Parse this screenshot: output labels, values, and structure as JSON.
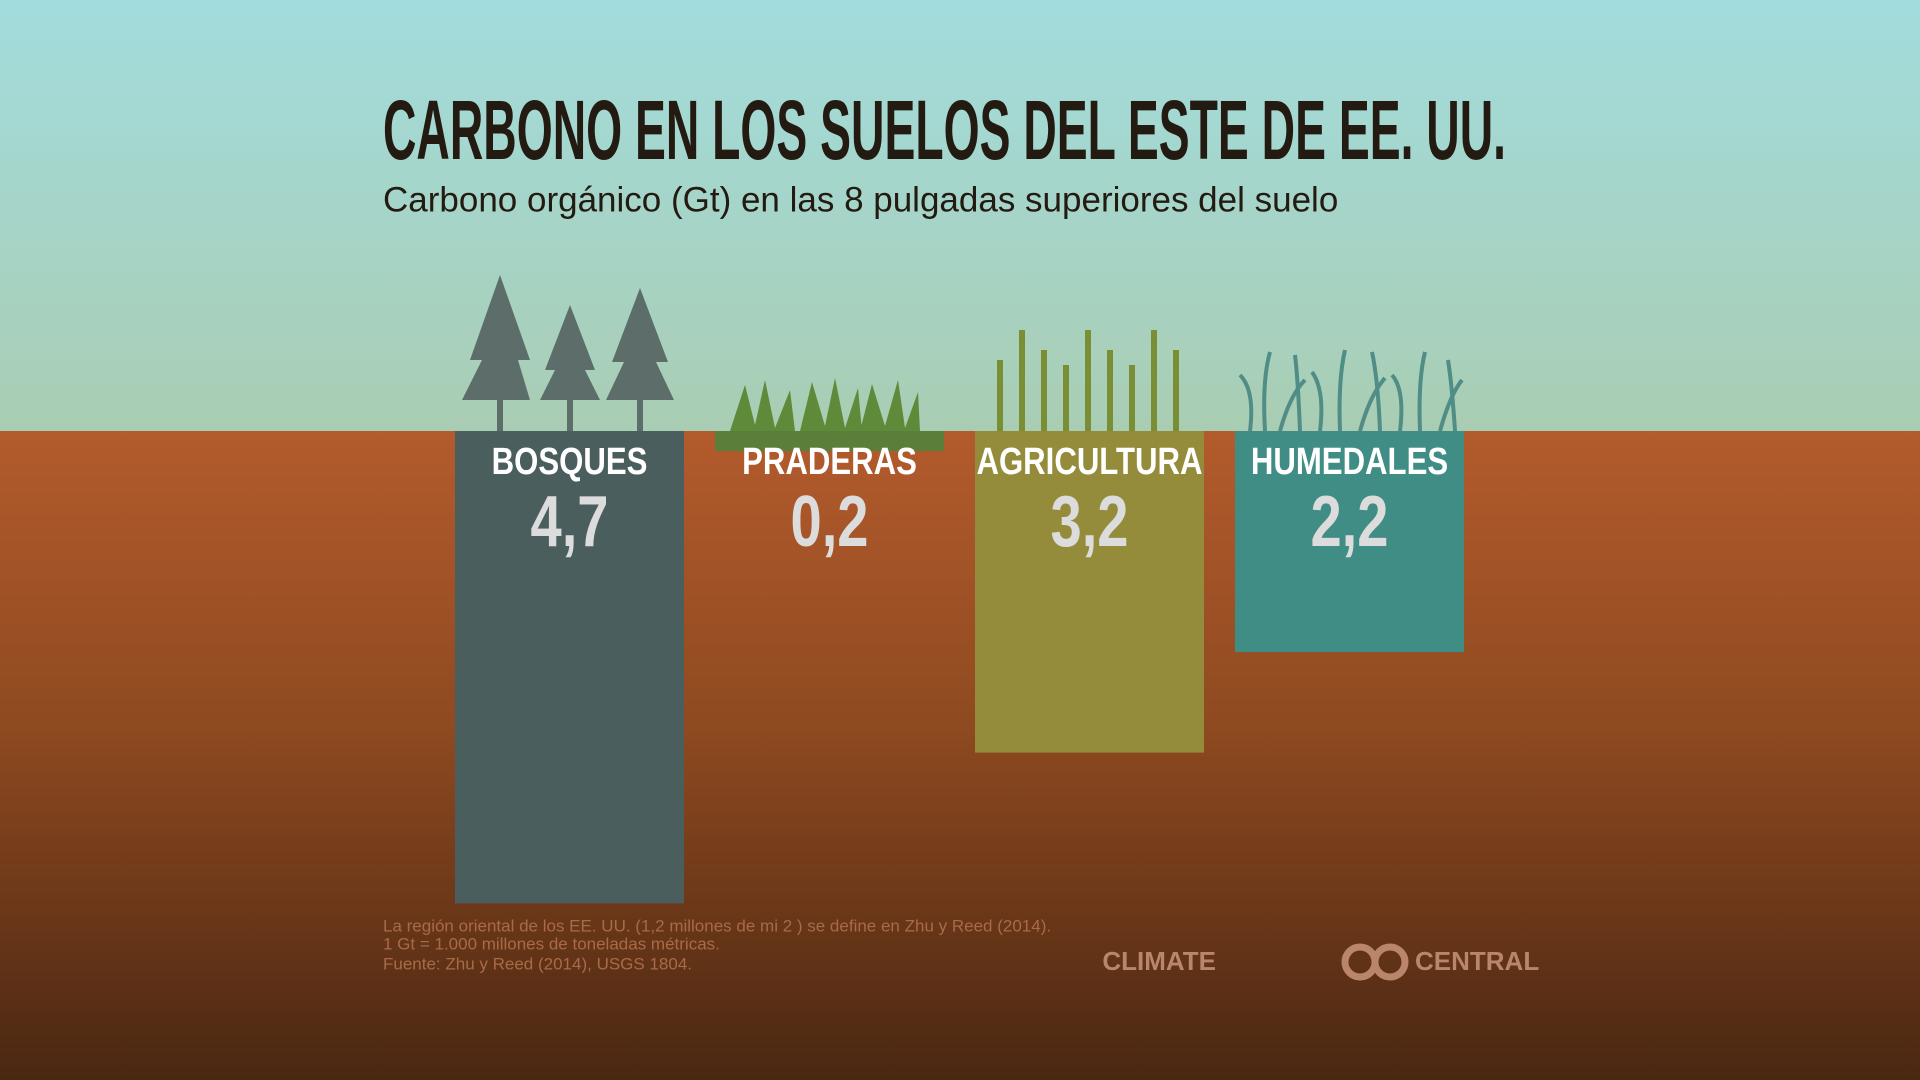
{
  "chart_data": {
    "type": "bar",
    "title": "CARBONO EN LOS SUELOS DEL ESTE DE EE. UU.",
    "subtitle": "Carbono orgánico (Gt) en las 8 pulgadas superiores del suelo",
    "categories": [
      "BOSQUES",
      "PRADERAS",
      "AGRICULTURA",
      "HUMEDALES"
    ],
    "values": [
      4.7,
      0.2,
      3.2,
      2.2
    ],
    "value_labels": [
      "4,7",
      "0,2",
      "3,2",
      "2,2"
    ],
    "colors": [
      "#4a5f5d",
      "#5b7f3a",
      "#958c3b",
      "#3f8d85"
    ],
    "notes": [
      "La región oriental de los EE. UU. (1,2 millones de mi 2 ) se define en Zhu y Reed (2014).",
      "1 Gt = 1.000 millones de toneladas métricas.",
      "Fuente: Zhu y Reed (2014), USGS 1804."
    ],
    "logo": [
      "CLIMATE",
      "CENTRAL"
    ]
  }
}
